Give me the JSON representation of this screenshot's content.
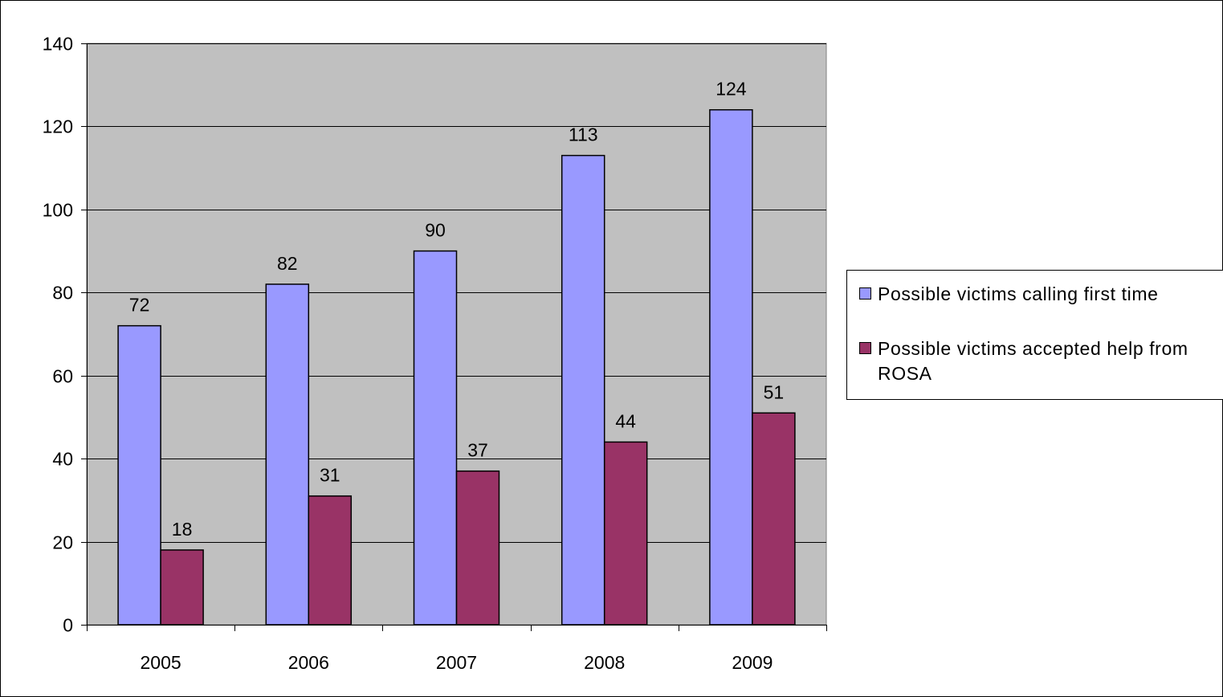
{
  "chart_data": {
    "type": "bar",
    "categories": [
      "2005",
      "2006",
      "2007",
      "2008",
      "2009"
    ],
    "series": [
      {
        "name": "Possible victims calling first time",
        "values": [
          72,
          82,
          90,
          113,
          124
        ],
        "color": "#9999ff"
      },
      {
        "name": "Possible victims accepted help from ROSA",
        "values": [
          18,
          31,
          37,
          44,
          51
        ],
        "color": "#993366"
      }
    ],
    "title": "",
    "xlabel": "",
    "ylabel": "",
    "ylim": [
      0,
      140
    ],
    "yticks": [
      0,
      20,
      40,
      60,
      80,
      100,
      120,
      140
    ],
    "grid": true,
    "legend_position": "right",
    "plot_background": "#c0c0c0"
  }
}
